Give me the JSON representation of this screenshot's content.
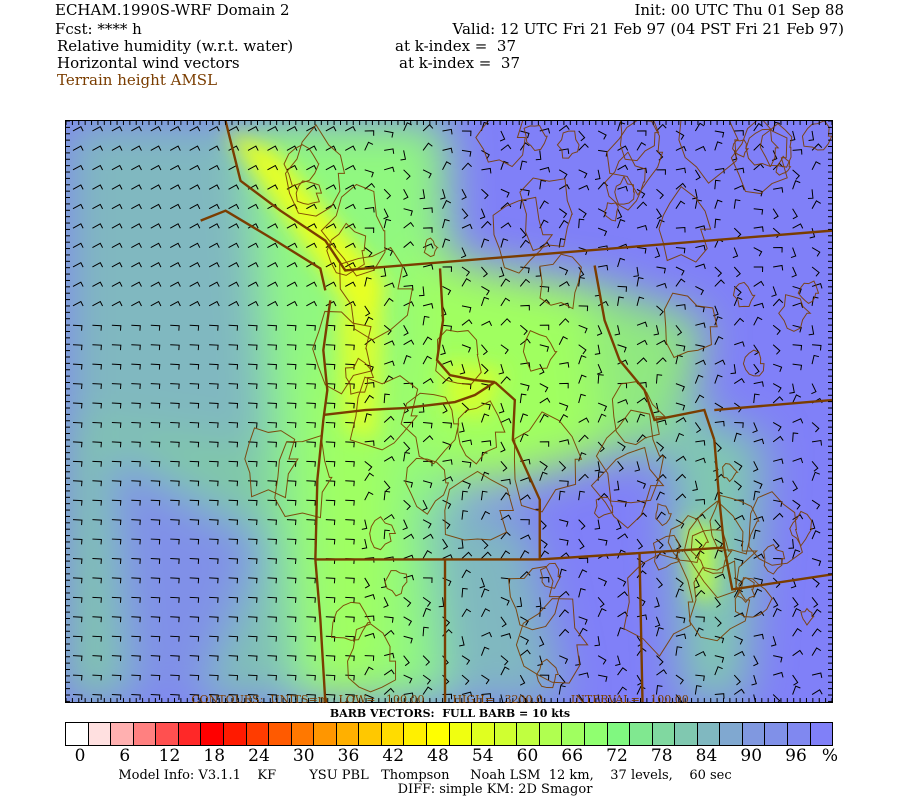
{
  "header": {
    "title": "ECHAM.1990S-WRF Domain 2",
    "init": "Init: 00 UTC Thu 01 Sep 88",
    "fcst": "Fcst: **** h",
    "valid": "Valid: 12 UTC Fri 21 Feb 97 (04 PST Fri 21 Feb 97)",
    "field1": "Relative humidity (w.r.t. water)",
    "field1_level": "at k-index =  37",
    "field2": "Horizontal wind vectors",
    "field2_level": "at k-index =  37",
    "field3": "Terrain height AMSL"
  },
  "map": {
    "contour_info": "CONTOURS:  UNITS=m   LOW=   100.00        HIGH=   3200.0        INTERVAL=   100.00",
    "barb_info": "BARB VECTORS:  FULL BARB = 10 kts",
    "terrain_color": "#7a3d00",
    "barb_color": "#000000"
  },
  "colorbar": {
    "unit": "%",
    "labels": [
      "0",
      "6",
      "12",
      "18",
      "24",
      "30",
      "36",
      "42",
      "48",
      "54",
      "60",
      "66",
      "72",
      "78",
      "84",
      "90",
      "96"
    ],
    "colors": [
      "#ffffff",
      "#ffe0e0",
      "#ffb0b0",
      "#ff8080",
      "#ff5050",
      "#ff2828",
      "#ff0000",
      "#ff1a00",
      "#ff3c00",
      "#ff5a00",
      "#ff7800",
      "#ff9600",
      "#ffb000",
      "#ffc800",
      "#ffdc00",
      "#fff000",
      "#ffff00",
      "#f0ff10",
      "#e0ff20",
      "#d0ff30",
      "#c0ff40",
      "#b0ff50",
      "#a0ff60",
      "#90ff70",
      "#80f880",
      "#80e890",
      "#80d8a0",
      "#80c8b0",
      "#80b8c0",
      "#80a8d0",
      "#8098e0",
      "#8090e8",
      "#8088f0",
      "#8080f8"
    ]
  },
  "footer": {
    "model_info": "Model Info: V3.1.1    KF        YSU PBL   Thompson     Noah LSM  12 km,    37 levels,    60 sec",
    "diff": "DIFF: simple KM: 2D Smagor"
  }
}
